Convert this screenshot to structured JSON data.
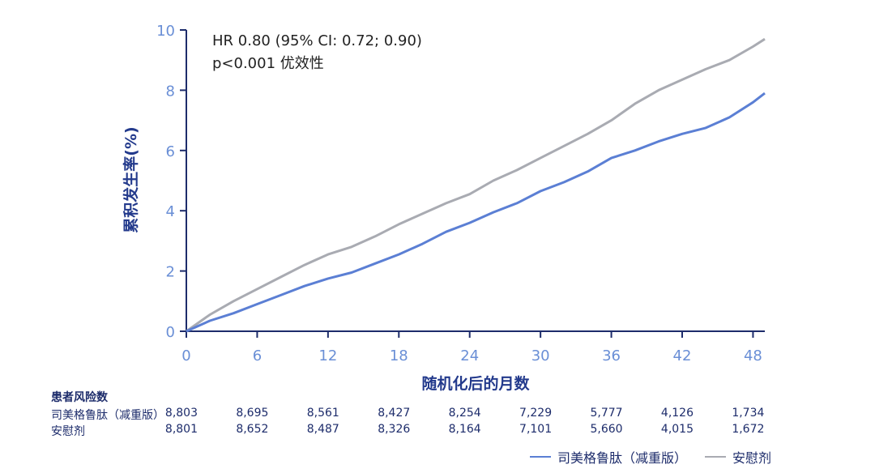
{
  "chart_data": {
    "type": "line",
    "ylabel": "累积发生率(%)",
    "xlabel": "随机化后的月数",
    "xlim": [
      0,
      49
    ],
    "ylim": [
      0,
      10
    ],
    "x_ticks": [
      "0",
      "6",
      "12",
      "18",
      "24",
      "30",
      "36",
      "42",
      "48"
    ],
    "y_ticks": [
      "0",
      "2",
      "4",
      "6",
      "8",
      "10"
    ],
    "annotation_line1": "HR 0.80 (95% CI: 0.72; 0.90)",
    "annotation_line2": "p<0.001 优效性",
    "series": [
      {
        "name": "司美格鲁肽（减重版）",
        "color": "#5b7fd4",
        "x": [
          0,
          2,
          4,
          6,
          8,
          10,
          12,
          14,
          16,
          18,
          20,
          22,
          24,
          26,
          28,
          30,
          32,
          34,
          36,
          38,
          40,
          42,
          44,
          46,
          48,
          49
        ],
        "y": [
          0,
          0.35,
          0.6,
          0.9,
          1.2,
          1.5,
          1.75,
          1.95,
          2.25,
          2.55,
          2.9,
          3.3,
          3.6,
          3.95,
          4.25,
          4.65,
          4.95,
          5.3,
          5.75,
          6.0,
          6.3,
          6.55,
          6.75,
          7.1,
          7.6,
          7.9
        ]
      },
      {
        "name": "安慰剂",
        "color": "#a9abb2",
        "x": [
          0,
          2,
          4,
          6,
          8,
          10,
          12,
          14,
          16,
          18,
          20,
          22,
          24,
          26,
          28,
          30,
          32,
          34,
          36,
          38,
          40,
          42,
          44,
          46,
          48,
          49
        ],
        "y": [
          0,
          0.55,
          1.0,
          1.4,
          1.8,
          2.2,
          2.55,
          2.8,
          3.15,
          3.55,
          3.9,
          4.25,
          4.55,
          5.0,
          5.35,
          5.75,
          6.15,
          6.55,
          7.0,
          7.55,
          8.0,
          8.35,
          8.7,
          9.0,
          9.45,
          9.7
        ]
      }
    ]
  },
  "risk_table": {
    "title": "患者风险数",
    "rows": [
      {
        "label": "司美格鲁肽（减重版）",
        "values": [
          "8,803",
          "8,695",
          "8,561",
          "8,427",
          "8,254",
          "7,229",
          "5,777",
          "4,126",
          "1,734"
        ]
      },
      {
        "label": "安慰剂",
        "values": [
          "8,801",
          "8,652",
          "8,487",
          "8,326",
          "8,164",
          "7,101",
          "5,660",
          "4,015",
          "1,672"
        ]
      }
    ]
  },
  "legend": [
    {
      "label": "司美格鲁肽（减重版）",
      "color": "#5b7fd4"
    },
    {
      "label": "安慰剂",
      "color": "#a9abb2"
    }
  ]
}
